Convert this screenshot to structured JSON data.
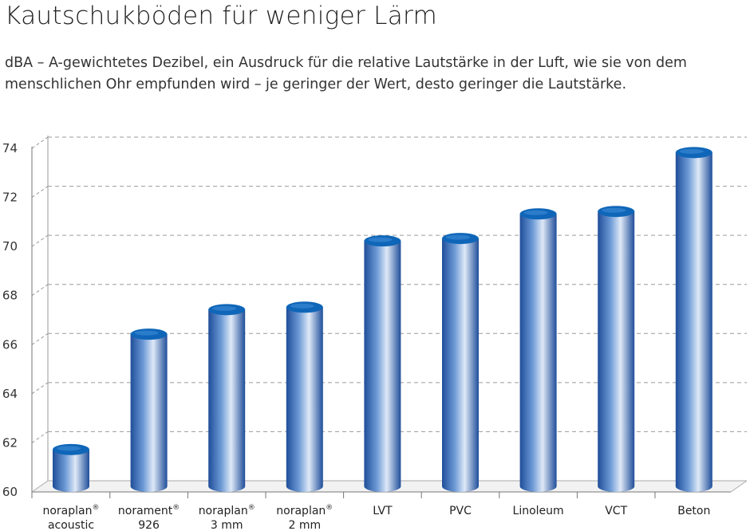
{
  "title": "Kautschukböden für weniger Lärm",
  "subtitle": "dBA – A-gewichtetes Dezibel, ein Ausdruck für die relative Lautstärke in der Luft, wie sie von dem menschlichen Ohr empfunden wird – je geringer der Wert, desto geringer die Lautstärke.",
  "colors": {
    "bar_dark": "#1f4e9a",
    "bar_mid": "#6e9bd6",
    "bar_light": "#dfe9f7",
    "bar_top": "#0f66b8",
    "grid": "#9a9a9a"
  },
  "chart_data": {
    "type": "bar",
    "title": "",
    "xlabel": "",
    "ylabel": "",
    "ylim": [
      60,
      74
    ],
    "yticks": [
      60,
      62,
      64,
      66,
      68,
      70,
      72,
      74
    ],
    "grid": true,
    "categories": [
      {
        "line1": "noraplan",
        "sup": "®",
        "line2": "acoustic"
      },
      {
        "line1": "norament",
        "sup": "®",
        "line2": "926"
      },
      {
        "line1": "noraplan",
        "sup": "®",
        "line2": "3 mm"
      },
      {
        "line1": "noraplan",
        "sup": "®",
        "line2": "2 mm"
      },
      {
        "line1": "LVT",
        "sup": "",
        "line2": ""
      },
      {
        "line1": "PVC",
        "sup": "",
        "line2": ""
      },
      {
        "line1": "Linoleum",
        "sup": "",
        "line2": ""
      },
      {
        "line1": "VCT",
        "sup": "",
        "line2": ""
      },
      {
        "line1": "Beton",
        "sup": "",
        "line2": ""
      }
    ],
    "values": [
      61.5,
      66.2,
      67.2,
      67.3,
      70.0,
      70.1,
      71.1,
      71.2,
      73.6
    ]
  }
}
